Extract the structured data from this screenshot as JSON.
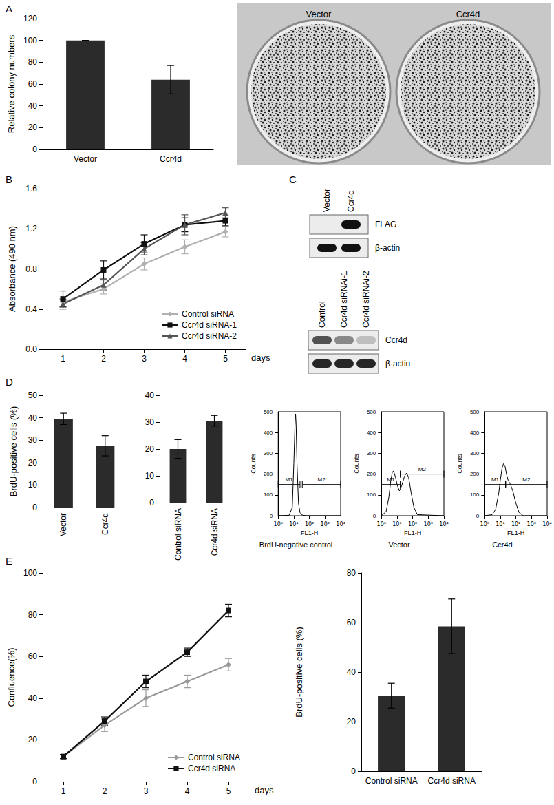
{
  "panel_labels": [
    "A",
    "B",
    "C",
    "D",
    "E"
  ],
  "plates": {
    "labels": [
      "Vector",
      "Ccr4d"
    ]
  },
  "blots": [
    {
      "columns": [
        "Vector",
        "Ccr4d"
      ],
      "rows": [
        {
          "label": "FLAG",
          "bands": [
            0,
            1
          ]
        },
        {
          "label": "β-actin",
          "bands": [
            1,
            1
          ]
        }
      ]
    },
    {
      "columns": [
        "Control",
        "Ccr4d siRNAi-1",
        "Ccr4d siRNAi-2"
      ],
      "rows": [
        {
          "label": "Ccr4d",
          "bands": [
            0.7,
            0.45,
            0.2
          ]
        },
        {
          "label": "β-actin",
          "bands": [
            0.9,
            0.9,
            0.9
          ]
        }
      ]
    }
  ],
  "chart_data": [
    {
      "type": "bar",
      "ylabel": "Relative colony numbers",
      "categories": [
        "Vector",
        "Ccr4d"
      ],
      "values": [
        100,
        64
      ],
      "errors": [
        0,
        13
      ],
      "color": "#2b2b2b",
      "ylim": [
        0,
        120
      ],
      "yticks": [
        0,
        20,
        40,
        60,
        80,
        100,
        120
      ],
      "grid": false
    },
    {
      "type": "line",
      "xlabel": "days",
      "ylabel": "Absorbance (490 nm)",
      "categories": [
        "1",
        "2",
        "3",
        "4",
        "5"
      ],
      "series": [
        {
          "name": "Control siRNA",
          "color": "#b0b0b0",
          "marker": "diamond",
          "line_style": "solid",
          "values": [
            0.47,
            0.6,
            0.85,
            1.02,
            1.17
          ],
          "errors": [
            0.05,
            0.05,
            0.06,
            0.07,
            0.05
          ]
        },
        {
          "name": "Ccr4d siRNA-1",
          "color": "#111111",
          "marker": "square",
          "line_style": "solid",
          "values": [
            0.5,
            0.79,
            1.05,
            1.24,
            1.28
          ],
          "errors": [
            0.08,
            0.09,
            0.09,
            0.07,
            0.05
          ]
        },
        {
          "name": "Ccr4d siRNA-2",
          "color": "#555555",
          "marker": "triangle",
          "line_style": "solid",
          "values": [
            0.45,
            0.64,
            1.0,
            1.24,
            1.36
          ],
          "errors": [
            0.05,
            0.05,
            0.06,
            0.1,
            0.05
          ]
        }
      ],
      "ylim": [
        0,
        1.6
      ],
      "yticks": [
        {
          "value": 0,
          "label": "0.0"
        },
        0.4,
        0.8,
        1.2,
        1.6
      ],
      "legend": "lower right",
      "grid": false
    },
    {
      "type": "bar",
      "ylabel": "BrdU-positive cells (%)",
      "categories": [
        "Vector",
        "Ccr4d"
      ],
      "values": [
        39.5,
        27.5
      ],
      "errors": [
        2.5,
        4.5
      ],
      "color": "#2b2b2b",
      "ylim": [
        0,
        50
      ],
      "yticks": [
        0,
        10,
        20,
        30,
        40,
        50
      ],
      "grid": false
    },
    {
      "type": "bar",
      "categories": [
        "Control siRNA",
        "Ccr4d siRNA"
      ],
      "values": [
        20,
        30.5
      ],
      "errors": [
        3.5,
        2
      ],
      "color": "#2b2b2b",
      "ylim": [
        0,
        40
      ],
      "yticks": [
        0,
        10,
        20,
        30,
        40
      ],
      "grid": false
    },
    {
      "type": "line",
      "title": "BrdU-negative control",
      "xlabel": "FL1-H",
      "ylabel": "Counts",
      "log": "x",
      "x": [
        1,
        5,
        8,
        10,
        12,
        13,
        14,
        16,
        20,
        25,
        35,
        60,
        10000
      ],
      "values": [
        0,
        2,
        40,
        250,
        450,
        490,
        440,
        250,
        60,
        15,
        3,
        0,
        0
      ],
      "color": "#000000",
      "gates": [
        {
          "label": "M1",
          "range": [
            1,
            25
          ],
          "level": 150
        },
        {
          "label": "M2",
          "range": [
            35,
            10000
          ],
          "level": 150
        }
      ],
      "xlim": [
        1,
        10000
      ],
      "xticks": [
        {
          "value": 1,
          "label": "10⁰"
        },
        {
          "value": 10,
          "label": "10¹"
        },
        {
          "value": 100,
          "label": "10²"
        },
        {
          "value": 1000,
          "label": "10³"
        },
        {
          "value": 10000,
          "label": "10⁴"
        }
      ],
      "ylim": [
        0,
        500
      ],
      "yticks": [
        0,
        100,
        200,
        300,
        400,
        500
      ],
      "grid": false
    },
    {
      "type": "line",
      "title": "Vector",
      "xlabel": "FL1-H",
      "ylabel": "Counts",
      "log": "x",
      "x": [
        1,
        2,
        3,
        4,
        5,
        6,
        8,
        10,
        14,
        20,
        30,
        40,
        55,
        80,
        120,
        200,
        10000
      ],
      "values": [
        0,
        20,
        90,
        170,
        210,
        215,
        185,
        150,
        120,
        145,
        190,
        205,
        185,
        110,
        40,
        5,
        0
      ],
      "color": "#000000",
      "gates": [
        {
          "label": "M1",
          "range": [
            1,
            16
          ],
          "level": 150
        },
        {
          "label": "M2",
          "range": [
            16,
            10000
          ],
          "level": 200
        }
      ],
      "xlim": [
        1,
        10000
      ],
      "xticks": [
        {
          "value": 1,
          "label": "10⁰"
        },
        {
          "value": 10,
          "label": "10¹"
        },
        {
          "value": 100,
          "label": "10²"
        },
        {
          "value": 1000,
          "label": "10³"
        },
        {
          "value": 10000,
          "label": "10⁴"
        }
      ],
      "ylim": [
        0,
        500
      ],
      "yticks": [
        0,
        100,
        200,
        300,
        400,
        500
      ],
      "grid": false
    },
    {
      "type": "line",
      "title": "Ccr4d",
      "xlabel": "FL1-H",
      "ylabel": "Counts",
      "log": "x",
      "x": [
        1,
        3,
        5,
        8,
        10,
        13,
        16,
        20,
        25,
        32,
        45,
        63,
        100,
        160,
        300,
        10000
      ],
      "values": [
        0,
        5,
        30,
        110,
        170,
        230,
        250,
        240,
        200,
        170,
        150,
        120,
        60,
        15,
        0,
        0
      ],
      "color": "#000000",
      "gates": [
        {
          "label": "M1",
          "range": [
            1,
            22
          ],
          "level": 150
        },
        {
          "label": "M2",
          "range": [
            22,
            10000
          ],
          "level": 150
        }
      ],
      "xlim": [
        1,
        10000
      ],
      "xticks": [
        {
          "value": 1,
          "label": "10⁰"
        },
        {
          "value": 10,
          "label": "10¹"
        },
        {
          "value": 100,
          "label": "10²"
        },
        {
          "value": 1000,
          "label": "10³"
        },
        {
          "value": 10000,
          "label": "10⁴"
        }
      ],
      "ylim": [
        0,
        500
      ],
      "yticks": [
        0,
        100,
        200,
        300,
        400,
        500
      ],
      "grid": false
    },
    {
      "type": "line",
      "xlabel": "days",
      "ylabel": "Confluence(%)",
      "categories": [
        "1",
        "2",
        "3",
        "4",
        "5"
      ],
      "series": [
        {
          "name": "Control siRNA",
          "color": "#999999",
          "marker": "diamond",
          "line_style": "solid",
          "values": [
            12,
            27,
            40,
            48,
            56
          ],
          "errors": [
            1,
            3,
            4,
            3,
            3
          ]
        },
        {
          "name": "Ccr4d siRNA",
          "color": "#111111",
          "marker": "square",
          "line_style": "solid",
          "values": [
            12,
            29,
            48,
            62,
            82
          ],
          "errors": [
            1,
            2,
            3,
            2,
            3
          ]
        }
      ],
      "ylim": [
        0,
        100
      ],
      "yticks": [
        0,
        20,
        40,
        60,
        80,
        100
      ],
      "legend": "lower right",
      "grid": false
    },
    {
      "type": "bar",
      "ylabel": "BrdU-positive cells (%)",
      "categories": [
        "Control siRNA",
        "Ccr4d siRNA"
      ],
      "values": [
        30.5,
        58.5
      ],
      "errors": [
        5,
        11
      ],
      "color": "#2b2b2b",
      "ylim": [
        0,
        80
      ],
      "yticks": [
        0,
        20,
        40,
        60,
        80
      ],
      "grid": false
    }
  ]
}
